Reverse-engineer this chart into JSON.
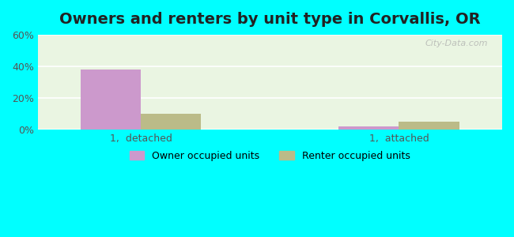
{
  "title": "Owners and renters by unit type in Corvallis, OR",
  "categories": [
    "1,  detached",
    "1,  attached"
  ],
  "owner_values": [
    38.0,
    2.0
  ],
  "renter_values": [
    10.0,
    5.0
  ],
  "owner_color": "#cc99cc",
  "renter_color": "#bbbb88",
  "ylim": [
    0,
    60
  ],
  "yticks": [
    0,
    20,
    40,
    60
  ],
  "ytick_labels": [
    "0%",
    "20%",
    "40%",
    "60%"
  ],
  "legend_owner": "Owner occupied units",
  "legend_renter": "Renter occupied units",
  "bg_color": "#00ffff",
  "plot_bg_color": "#eaf5e2",
  "title_fontsize": 14,
  "bar_width": 0.35,
  "watermark": "City-Data.com"
}
